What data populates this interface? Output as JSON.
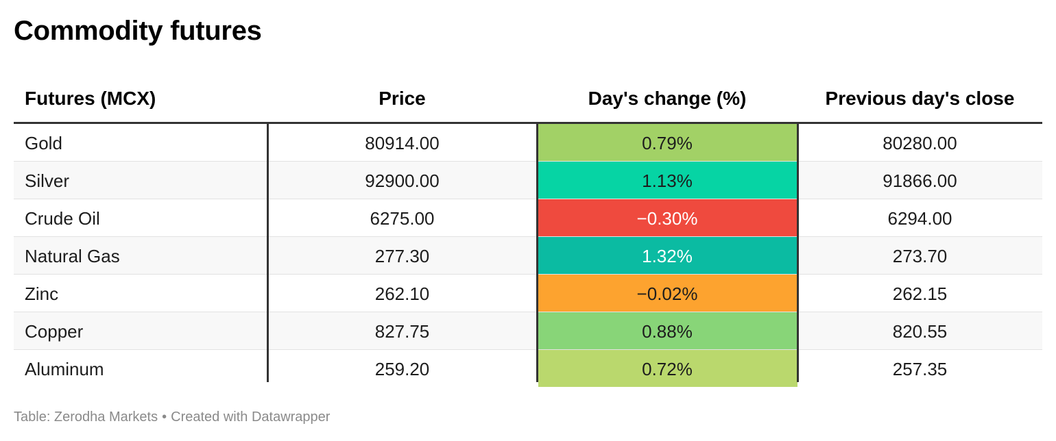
{
  "title": "Commodity futures",
  "chart_data": {
    "type": "table",
    "title": "Commodity futures",
    "columns": [
      "Futures (MCX)",
      "Price",
      "Day's change (%)",
      "Previous day's close"
    ],
    "rows": [
      {
        "name": "Gold",
        "price": "80914.00",
        "change": "0.79%",
        "change_value": 0.79,
        "prev_close": "80280.00",
        "change_color": "#a2d166",
        "change_text_color": "#1d1d1d"
      },
      {
        "name": "Silver",
        "price": "92900.00",
        "change": "1.13%",
        "change_value": 1.13,
        "prev_close": "91866.00",
        "change_color": "#06d4a4",
        "change_text_color": "#1d1d1d"
      },
      {
        "name": "Crude Oil",
        "price": "6275.00",
        "change": "−0.30%",
        "change_value": -0.3,
        "prev_close": "6294.00",
        "change_color": "#ef4a3e",
        "change_text_color": "#ffffff"
      },
      {
        "name": "Natural Gas",
        "price": "277.30",
        "change": "1.32%",
        "change_value": 1.32,
        "prev_close": "273.70",
        "change_color": "#0bbba2",
        "change_text_color": "#ffffff"
      },
      {
        "name": "Zinc",
        "price": "262.10",
        "change": "−0.02%",
        "change_value": -0.02,
        "prev_close": "262.15",
        "change_color": "#fda32f",
        "change_text_color": "#1d1d1d"
      },
      {
        "name": "Copper",
        "price": "827.75",
        "change": "0.88%",
        "change_value": 0.88,
        "prev_close": "820.55",
        "change_color": "#88d578",
        "change_text_color": "#1d1d1d"
      },
      {
        "name": "Aluminum",
        "price": "259.20",
        "change": "0.72%",
        "change_value": 0.72,
        "prev_close": "257.35",
        "change_color": "#bad86d",
        "change_text_color": "#1d1d1d"
      }
    ]
  },
  "footer": {
    "source": "Table: Zerodha Markets",
    "separator": "•",
    "credit": "Created with Datawrapper"
  }
}
